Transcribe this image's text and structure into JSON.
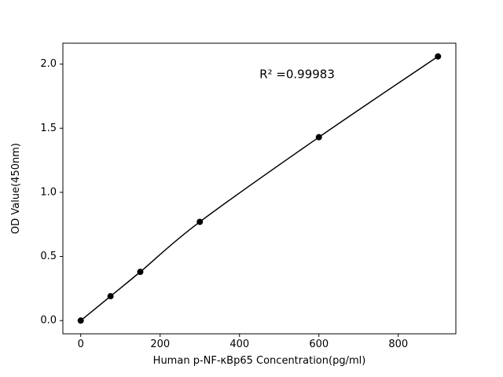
{
  "window": {
    "background": "#ffffff"
  },
  "chart_data": {
    "type": "line",
    "title": "",
    "xlabel": "Human p-NF-κBp65 Concentration(pg/ml)",
    "ylabel": "OD Value(450nm)",
    "annotation": {
      "text": "R² =0.99983",
      "x": 545,
      "y": 1.89
    },
    "x": [
      0,
      75,
      150,
      300,
      600,
      900
    ],
    "y": [
      0.0,
      0.19,
      0.38,
      0.77,
      1.43,
      2.06
    ],
    "xlim": [
      -45,
      945
    ],
    "ylim": [
      -0.103,
      2.163
    ],
    "xticks": [
      0,
      200,
      400,
      600,
      800
    ],
    "xtick_labels": [
      "0",
      "200",
      "400",
      "600",
      "800"
    ],
    "yticks": [
      0.0,
      0.5,
      1.0,
      1.5,
      2.0
    ],
    "ytick_labels": [
      "0.0",
      "0.5",
      "1.0",
      "1.5",
      "2.0"
    ],
    "line_color": "#000000",
    "marker_color": "#000000",
    "marker_radius": 4,
    "grid": false,
    "legend": null
  }
}
